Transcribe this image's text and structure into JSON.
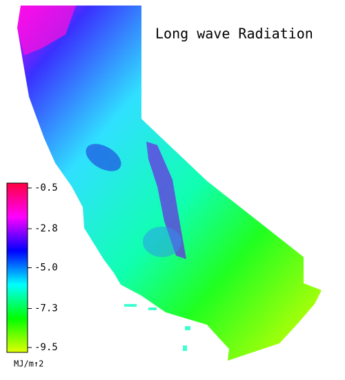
{
  "chart_data": {
    "type": "map",
    "title": "Long wave Radiation",
    "colorbar": {
      "label": "MJ/m↑2",
      "clim": [
        -9.5,
        -0.5
      ],
      "ticks": [
        -0.5,
        -2.8,
        {
          "value": -5,
          "label": "-5.0"
        },
        -7.3,
        -9.5
      ],
      "colors": [
        "#ff0040",
        "#ff00ff",
        "#0000ff",
        "#00ffff",
        "#00ff00",
        "#e0ff00"
      ]
    }
  }
}
